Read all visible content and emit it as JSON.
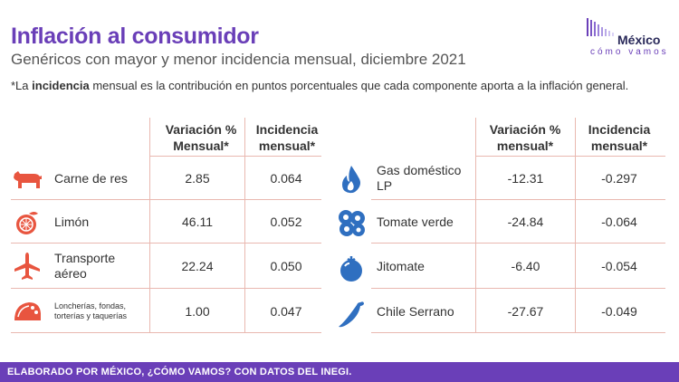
{
  "header": {
    "title": "Inflación al consumidor",
    "subtitle": "Genéricos con mayor y menor incidencia mensual, diciembre 2021",
    "note_prefix": "*La ",
    "note_bold": "incidencia",
    "note_rest": " mensual es la contribución en puntos porcentuales que cada componente aporta a la inflación general."
  },
  "logo": {
    "top": "México",
    "bottom": "cómo vamos"
  },
  "columns": {
    "variacion": "Variación % Mensual*",
    "incidencia": "Incidencia mensual*"
  },
  "columns_right": {
    "variacion": "Variación % mensual*",
    "incidencia": "Incidencia mensual*"
  },
  "left_rows": [
    {
      "name": "Carne de res",
      "variacion": "2.85",
      "incidencia": "0.064",
      "icon": "cow-icon"
    },
    {
      "name": "Limón",
      "variacion": "46.11",
      "incidencia": "0.052",
      "icon": "lemon-icon"
    },
    {
      "name": "Transporte aéreo",
      "variacion": "22.24",
      "incidencia": "0.050",
      "icon": "airplane-icon"
    },
    {
      "name": "Loncherías, fondas, torterías y taquerías",
      "variacion": "1.00",
      "incidencia": "0.047",
      "icon": "taco-icon"
    }
  ],
  "right_rows": [
    {
      "name": "Gas doméstico LP",
      "variacion": "-12.31",
      "incidencia": "-0.297",
      "icon": "flame-icon"
    },
    {
      "name": "Tomate verde",
      "variacion": "-24.84",
      "incidencia": "-0.064",
      "icon": "green-tomato-icon"
    },
    {
      "name": "Jitomate",
      "variacion": "-6.40",
      "incidencia": "-0.054",
      "icon": "tomato-icon"
    },
    {
      "name": "Chile Serrano",
      "variacion": "-27.67",
      "incidencia": "-0.049",
      "icon": "chili-icon"
    }
  ],
  "colors": {
    "accent": "#6a3fb8",
    "left_icon": "#e8553f",
    "right_icon": "#2f6fc0",
    "grid": "#e9b8b0"
  },
  "footer": "ELABORADO POR MÉXICO, ¿CÓMO VAMOS? CON DATOS DEL INEGI."
}
